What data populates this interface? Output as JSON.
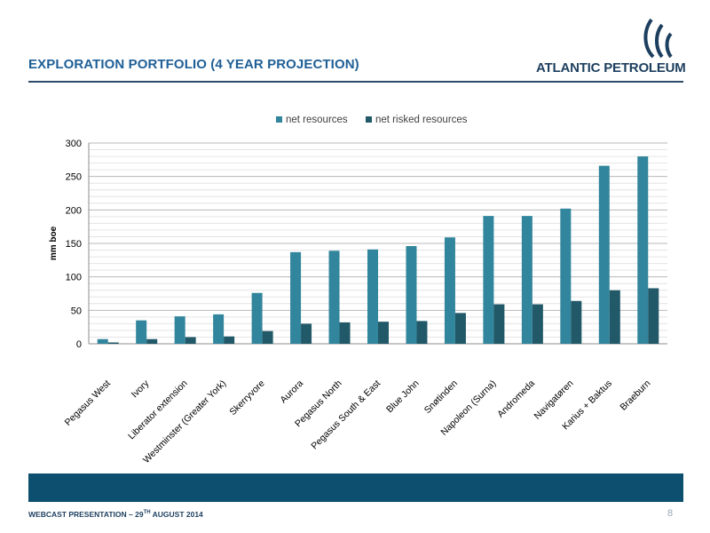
{
  "header": {
    "title": "EXPLORATION PORTFOLIO (4 YEAR PROJECTION)",
    "logo_text": "ATLANTIC PETROLEUM"
  },
  "footer": {
    "prefix": "WEBCAST PRESENTATION – 29",
    "sup": "TH",
    "suffix": " AUGUST 2014",
    "page": "8"
  },
  "colors": {
    "net_resources": "#31859c",
    "net_risked_resources": "#215968",
    "title": "#1f5f96",
    "band": "#0d4f6f"
  },
  "chart_data": {
    "type": "bar",
    "ylabel": "mm boe",
    "ylim": [
      0,
      300
    ],
    "yticks": [
      0,
      50,
      100,
      150,
      200,
      250,
      300
    ],
    "grid": true,
    "legend_position": "top",
    "categories": [
      "Pegasus West",
      "Ivory",
      "Liberator extension",
      "Westminster (Greater York)",
      "Skerryvore",
      "Aurora",
      "Pegasus North",
      "Pegasus South & East",
      "Blue John",
      "Snøtinden",
      "Napoleon (Surna)",
      "Andromeda",
      "Navigatøren",
      "Karius + Baktus",
      "Braeburn"
    ],
    "series": [
      {
        "name": "net resources",
        "values": [
          7,
          35,
          41,
          44,
          76,
          137,
          139,
          141,
          146,
          159,
          191,
          191,
          202,
          266,
          280
        ]
      },
      {
        "name": "net risked resources",
        "values": [
          2,
          7,
          10,
          11,
          19,
          30,
          32,
          33,
          34,
          46,
          59,
          59,
          64,
          80,
          83
        ]
      }
    ]
  }
}
